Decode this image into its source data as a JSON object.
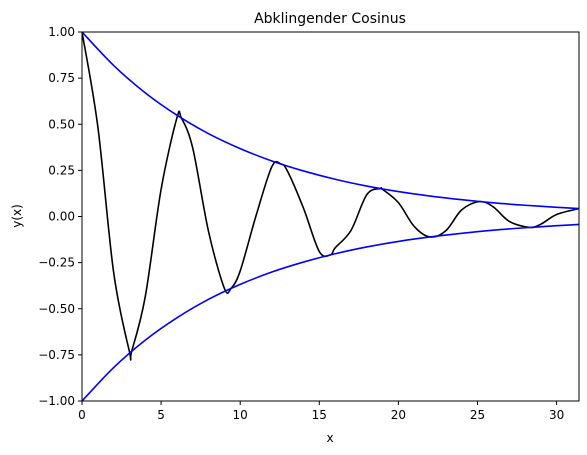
{
  "chart_data": {
    "type": "line",
    "title": "Abklingender Cosinus",
    "xlabel": "x",
    "ylabel": "y(x)",
    "xlim": [
      0,
      31.4159
    ],
    "ylim": [
      -1.0,
      1.0
    ],
    "xticks": [
      0,
      5,
      10,
      15,
      20,
      25,
      30
    ],
    "yticks": [
      -1.0,
      -0.75,
      -0.5,
      -0.25,
      0.0,
      0.25,
      0.5,
      0.75,
      1.0
    ],
    "xtick_labels": [
      "0",
      "5",
      "10",
      "15",
      "20",
      "25",
      "30"
    ],
    "ytick_labels": [
      "−1.00",
      "−0.75",
      "−0.50",
      "−0.25",
      "0.00",
      "0.25",
      "0.50",
      "0.75",
      "1.00"
    ],
    "grid": false,
    "legend": "none",
    "series": [
      {
        "color": "#000000",
        "x": [
          0,
          1,
          2,
          3,
          3.14,
          4,
          5,
          6,
          6.28,
          7,
          8,
          9,
          9.42,
          10,
          11,
          12,
          12.57,
          13,
          14,
          15,
          15.71,
          16,
          17,
          18,
          18.85,
          19,
          20,
          21,
          21.99,
          23,
          24,
          25.13,
          26,
          27,
          28.27,
          29,
          30,
          31.42
        ],
        "y": [
          1.0,
          0.487,
          -0.303,
          -0.733,
          -0.73,
          -0.434,
          0.147,
          0.535,
          0.534,
          0.371,
          -0.082,
          -0.389,
          -0.39,
          -0.295,
          0.004,
          0.27,
          0.285,
          0.244,
          0.045,
          -0.19,
          -0.208,
          -0.17,
          -0.076,
          0.118,
          0.152,
          0.147,
          0.075,
          -0.054,
          -0.111,
          -0.077,
          0.036,
          0.081,
          0.052,
          -0.026,
          -0.059,
          -0.042,
          0.011,
          0.043
        ]
      },
      {
        "color": "#0000ff",
        "x": [
          0,
          2,
          4,
          6,
          8,
          10,
          12,
          14,
          16,
          18,
          20,
          22,
          24,
          26,
          28,
          30,
          31.42
        ],
        "y": [
          1.0,
          0.819,
          0.67,
          0.549,
          0.449,
          0.368,
          0.301,
          0.247,
          0.202,
          0.165,
          0.135,
          0.111,
          0.091,
          0.074,
          0.061,
          0.05,
          0.043
        ]
      },
      {
        "color": "#0000ff",
        "x": [
          0,
          2,
          4,
          6,
          8,
          10,
          12,
          14,
          16,
          18,
          20,
          22,
          24,
          26,
          28,
          30,
          31.42
        ],
        "y": [
          -1.0,
          -0.819,
          -0.67,
          -0.549,
          -0.449,
          -0.368,
          -0.301,
          -0.247,
          -0.202,
          -0.165,
          -0.135,
          -0.111,
          -0.091,
          -0.074,
          -0.061,
          -0.05,
          -0.043
        ]
      }
    ]
  }
}
